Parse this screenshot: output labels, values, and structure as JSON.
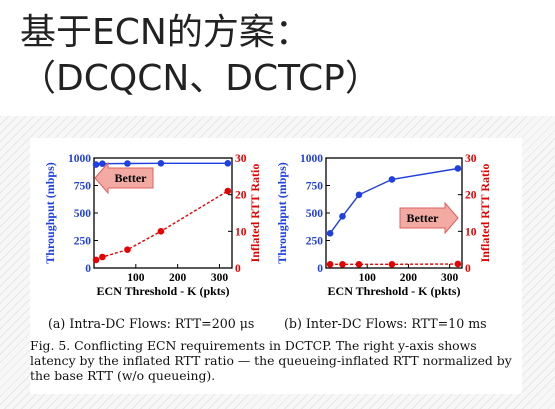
{
  "slide": {
    "title_line1": "基于ECN的方案：",
    "title_line2": "（DCQCN、DCTCP）"
  },
  "figure": {
    "sub_a": "(a) Intra-DC Flows: RTT=200 μs",
    "sub_b": "(b) Inter-DC Flows: RTT=10 ms",
    "caption": "Fig. 5.   Conflicting ECN requirements in DCTCP. The right y-axis shows latency by the inflated RTT ratio — the queueing-inflated RTT normalized by the base RTT (w/o queueing).",
    "arrow_a": "Better",
    "arrow_b": "Better"
  },
  "colors": {
    "throughput": "#1f3fe0",
    "rtt": "#e60000",
    "arrow_fill": "#f2aaa3",
    "arrow_stroke": "#e06060"
  },
  "chart_data": [
    {
      "type": "line",
      "xlabel": "ECN Threshold - K (pkts)",
      "ylabel_left": "Throughput (mbps)",
      "ylabel_right": "Inflated RTT Ratio",
      "xticks": [
        "100",
        "200",
        "300"
      ],
      "yticks_left": [
        "0",
        "250",
        "500",
        "750",
        "1000"
      ],
      "yticks_right": [
        "0",
        "10",
        "20",
        "30"
      ],
      "xlim": [
        0,
        330
      ],
      "ylim_left": [
        0,
        1000
      ],
      "ylim_right": [
        0,
        30
      ],
      "series": [
        {
          "axis": "left",
          "x": [
            5,
            20,
            80,
            160,
            320
          ],
          "values": [
            940,
            948,
            950,
            952,
            952
          ]
        },
        {
          "axis": "right",
          "x": [
            5,
            20,
            80,
            160,
            320
          ],
          "values": [
            2.2,
            3.0,
            5.0,
            10.0,
            21.0
          ]
        }
      ]
    },
    {
      "type": "line",
      "xlabel": "ECN Threshold - K (pkts)",
      "ylabel_left": "Throughput (mbps)",
      "ylabel_right": "Inflated RTT Ratio",
      "xticks": [
        "100",
        "200",
        "300"
      ],
      "yticks_left": [
        "0",
        "250",
        "500",
        "750",
        "1000"
      ],
      "yticks_right": [
        "0",
        "10",
        "20",
        "30"
      ],
      "xlim": [
        0,
        330
      ],
      "ylim_left": [
        0,
        1000
      ],
      "ylim_right": [
        0,
        30
      ],
      "series": [
        {
          "axis": "left",
          "x": [
            10,
            40,
            80,
            160,
            320
          ],
          "values": [
            315,
            470,
            665,
            805,
            905
          ]
        },
        {
          "axis": "right",
          "x": [
            10,
            40,
            80,
            160,
            320
          ],
          "values": [
            1.0,
            1.0,
            1.0,
            1.0,
            1.1
          ]
        }
      ]
    }
  ]
}
